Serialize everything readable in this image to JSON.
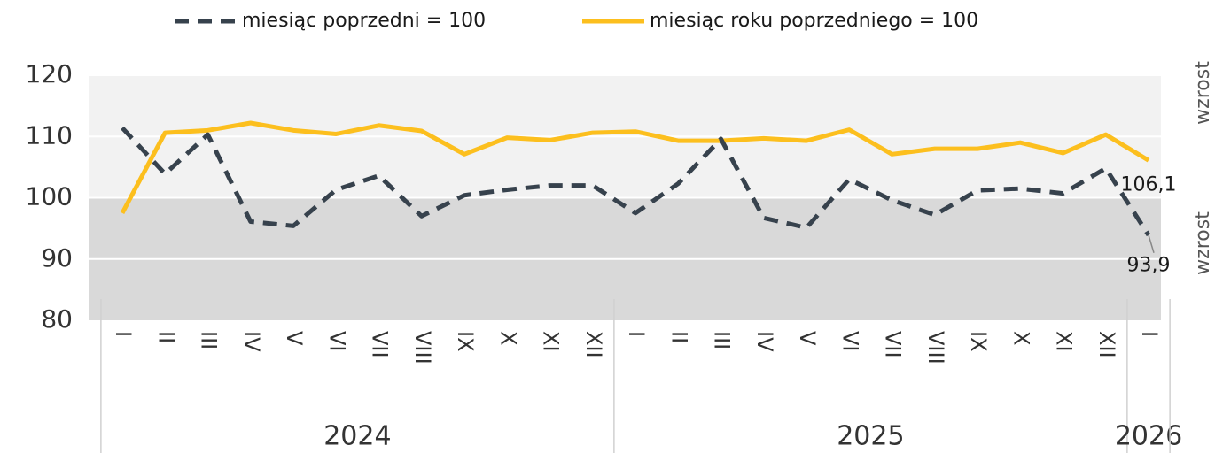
{
  "chart_data": {
    "type": "line",
    "categories": [
      "I",
      "II",
      "III",
      "IV",
      "V",
      "VI",
      "VII",
      "VIII",
      "IX",
      "X",
      "XI",
      "XII",
      "I",
      "II",
      "III",
      "IV",
      "V",
      "VI",
      "VII",
      "VIII",
      "IX",
      "X",
      "XI",
      "XII",
      "I"
    ],
    "groups": [
      {
        "label": "2024",
        "count": 12
      },
      {
        "label": "2025",
        "count": 12
      },
      {
        "label": "2026",
        "count": 1
      }
    ],
    "series": [
      {
        "name": "miesiąc poprzedni = 100",
        "color": "#37424d",
        "dashed": true,
        "values": [
          111.4,
          103.9,
          110.3,
          96.1,
          95.4,
          101.3,
          103.6,
          97.0,
          100.4,
          101.3,
          102.0,
          102.0,
          97.5,
          102.3,
          109.6,
          96.7,
          95.1,
          103.0,
          99.6,
          97.2,
          101.2,
          101.5,
          100.7,
          104.8,
          93.9
        ],
        "value_labels": [
          null,
          null,
          null,
          null,
          null,
          null,
          null,
          null,
          null,
          null,
          null,
          null,
          null,
          null,
          null,
          null,
          null,
          null,
          null,
          null,
          null,
          null,
          null,
          null,
          "93,9"
        ]
      },
      {
        "name": "miesiąc roku poprzedniego = 100",
        "color": "#fcbf1e",
        "dashed": false,
        "values": [
          97.5,
          110.6,
          111.0,
          112.2,
          111.0,
          110.4,
          111.8,
          110.9,
          107.1,
          109.8,
          109.4,
          110.6,
          110.8,
          109.3,
          109.3,
          109.7,
          109.3,
          111.1,
          107.1,
          108.0,
          108.0,
          109.0,
          107.3,
          110.3,
          106.1
        ],
        "value_labels": [
          null,
          null,
          null,
          null,
          null,
          null,
          null,
          null,
          null,
          null,
          null,
          null,
          null,
          null,
          null,
          null,
          null,
          null,
          null,
          null,
          null,
          null,
          null,
          null,
          "106,1"
        ]
      }
    ],
    "ylim": [
      80,
      120
    ],
    "yticks": [
      80,
      90,
      100,
      110,
      120
    ],
    "threshold": 100,
    "grid": true,
    "legend": "top",
    "annotations": [
      "wzrost",
      "wzrost"
    ]
  }
}
